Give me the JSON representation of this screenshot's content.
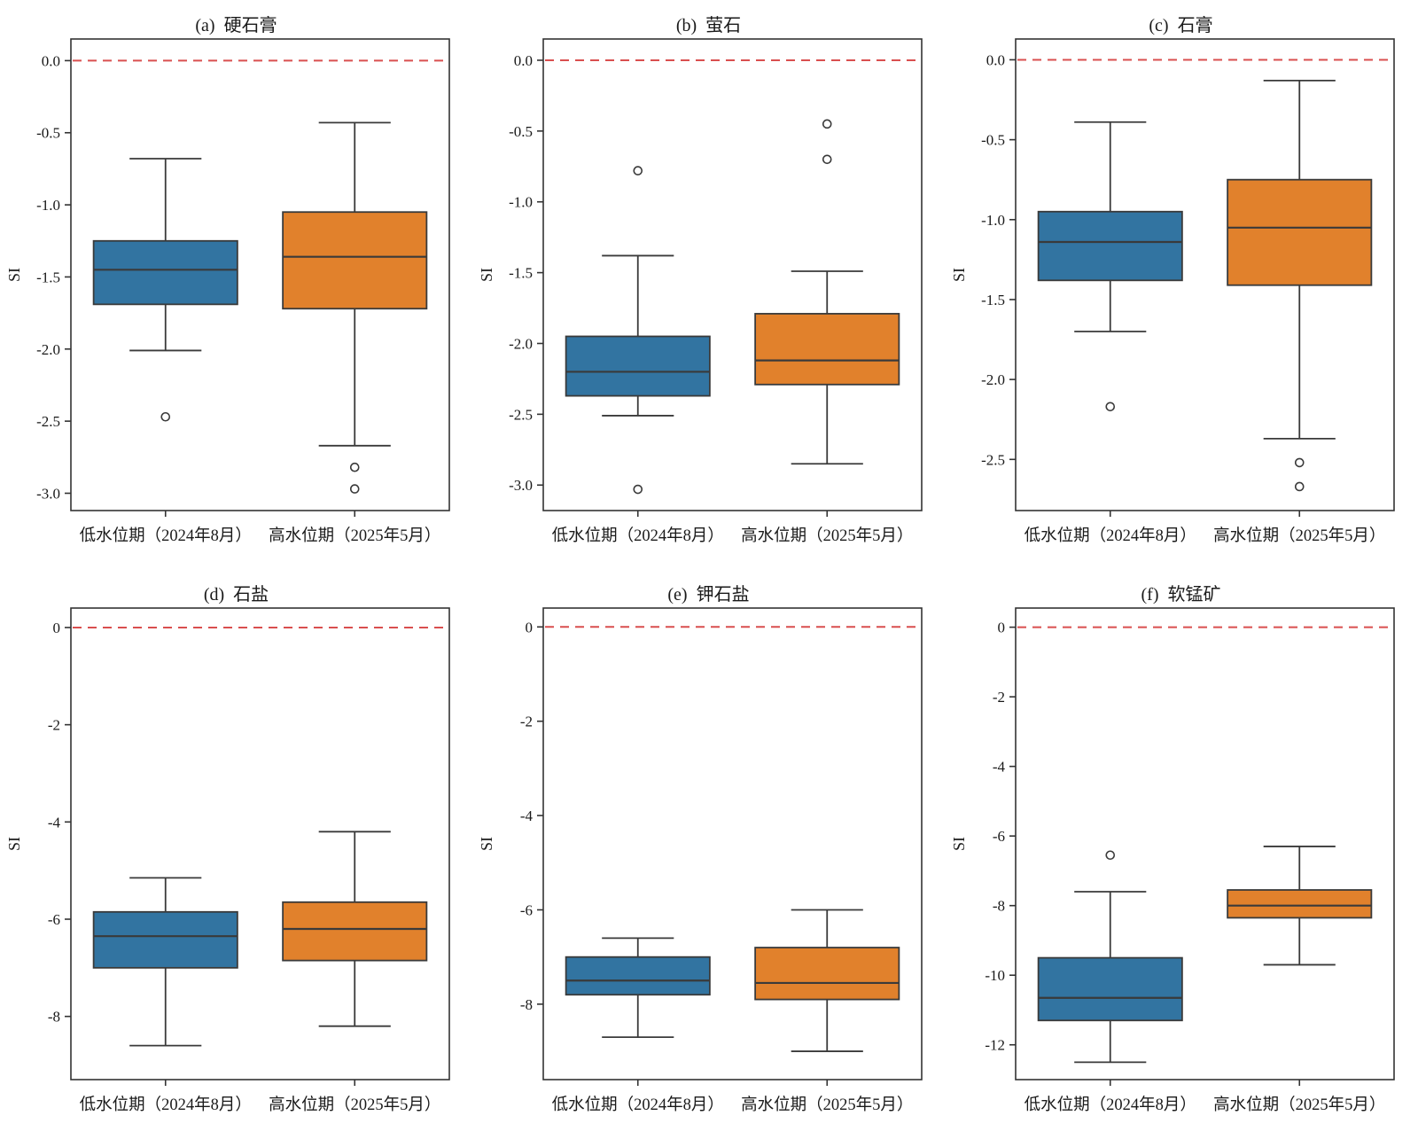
{
  "figure": {
    "ylabel": "SI",
    "refline": {
      "value": 0,
      "color": "#d94f4f",
      "style": "dashed"
    },
    "colors": {
      "low_period": "#3274a1",
      "high_period": "#e1812c",
      "box_edge": "#3a3a3a",
      "axis": "#333333",
      "text": "#1a1a1a"
    },
    "categories": [
      "低水位期（2024年8月）",
      "高水位期（2025年5月）"
    ]
  },
  "chart_data": [
    {
      "type": "boxplot",
      "title": "(a)  硬石膏",
      "ylabel": "SI",
      "ylim": [
        -3.12,
        0.15
      ],
      "refline": 0,
      "yticks": [
        {
          "v": 0,
          "t": "0.0"
        },
        {
          "v": -0.5,
          "t": "-0.5"
        },
        {
          "v": -1,
          "t": "-1.0"
        },
        {
          "v": -1.5,
          "t": "-1.5"
        },
        {
          "v": -2,
          "t": "-2.0"
        },
        {
          "v": -2.5,
          "t": "-2.5"
        },
        {
          "v": -3,
          "t": "-3.0"
        }
      ],
      "series": [
        {
          "label": "低水位期（2024年8月）",
          "color": "#3274a1",
          "whislo": -2.01,
          "q1": -1.69,
          "med": -1.45,
          "q3": -1.25,
          "whishi": -0.68,
          "fliers": [
            -2.47
          ]
        },
        {
          "label": "高水位期（2025年5月）",
          "color": "#e1812c",
          "whislo": -2.67,
          "q1": -1.72,
          "med": -1.36,
          "q3": -1.05,
          "whishi": -0.43,
          "fliers": [
            -2.82,
            -2.97
          ]
        }
      ]
    },
    {
      "type": "boxplot",
      "title": "(b)  萤石",
      "ylabel": "SI",
      "ylim": [
        -3.18,
        0.15
      ],
      "refline": 0,
      "yticks": [
        {
          "v": 0,
          "t": "0.0"
        },
        {
          "v": -0.5,
          "t": "-0.5"
        },
        {
          "v": -1,
          "t": "-1.0"
        },
        {
          "v": -1.5,
          "t": "-1.5"
        },
        {
          "v": -2,
          "t": "-2.0"
        },
        {
          "v": -2.5,
          "t": "-2.5"
        },
        {
          "v": -3,
          "t": "-3.0"
        }
      ],
      "series": [
        {
          "label": "低水位期（2024年8月）",
          "color": "#3274a1",
          "whislo": -2.51,
          "q1": -2.37,
          "med": -2.2,
          "q3": -1.95,
          "whishi": -1.38,
          "fliers": [
            -0.78,
            -3.03
          ]
        },
        {
          "label": "高水位期（2025年5月）",
          "color": "#e1812c",
          "whislo": -2.85,
          "q1": -2.29,
          "med": -2.12,
          "q3": -1.79,
          "whishi": -1.49,
          "fliers": [
            -0.45,
            -0.7
          ]
        }
      ]
    },
    {
      "type": "boxplot",
      "title": "(c)  石膏",
      "ylabel": "SI",
      "ylim": [
        -2.82,
        0.13
      ],
      "refline": 0,
      "yticks": [
        {
          "v": 0,
          "t": "0.0"
        },
        {
          "v": -0.5,
          "t": "-0.5"
        },
        {
          "v": -1,
          "t": "-1.0"
        },
        {
          "v": -1.5,
          "t": "-1.5"
        },
        {
          "v": -2,
          "t": "-2.0"
        },
        {
          "v": -2.5,
          "t": "-2.5"
        }
      ],
      "series": [
        {
          "label": "低水位期（2024年8月）",
          "color": "#3274a1",
          "whislo": -1.7,
          "q1": -1.38,
          "med": -1.14,
          "q3": -0.95,
          "whishi": -0.39,
          "fliers": [
            -2.17
          ]
        },
        {
          "label": "高水位期（2025年5月）",
          "color": "#e1812c",
          "whislo": -2.37,
          "q1": -1.41,
          "med": -1.05,
          "q3": -0.75,
          "whishi": -0.13,
          "fliers": [
            -2.52,
            -2.67
          ]
        }
      ]
    },
    {
      "type": "boxplot",
      "title": "(d)  石盐",
      "ylabel": "SI",
      "ylim": [
        -9.3,
        0.4
      ],
      "refline": 0,
      "yticks": [
        {
          "v": 0,
          "t": "0"
        },
        {
          "v": -2,
          "t": "-2"
        },
        {
          "v": -4,
          "t": "-4"
        },
        {
          "v": -6,
          "t": "-6"
        },
        {
          "v": -8,
          "t": "-8"
        }
      ],
      "series": [
        {
          "label": "低水位期（2024年8月）",
          "color": "#3274a1",
          "whislo": -8.6,
          "q1": -7.0,
          "med": -6.35,
          "q3": -5.85,
          "whishi": -5.15,
          "fliers": []
        },
        {
          "label": "高水位期（2025年5月）",
          "color": "#e1812c",
          "whislo": -8.2,
          "q1": -6.85,
          "med": -6.2,
          "q3": -5.65,
          "whishi": -4.2,
          "fliers": []
        }
      ]
    },
    {
      "type": "boxplot",
      "title": "(e)  钾石盐",
      "ylabel": "SI",
      "ylim": [
        -9.6,
        0.4
      ],
      "refline": 0,
      "yticks": [
        {
          "v": 0,
          "t": "0"
        },
        {
          "v": -2,
          "t": "-2"
        },
        {
          "v": -4,
          "t": "-4"
        },
        {
          "v": -6,
          "t": "-6"
        },
        {
          "v": -8,
          "t": "-8"
        }
      ],
      "series": [
        {
          "label": "低水位期（2024年8月）",
          "color": "#3274a1",
          "whislo": -8.7,
          "q1": -7.8,
          "med": -7.5,
          "q3": -7.0,
          "whishi": -6.6,
          "fliers": []
        },
        {
          "label": "高水位期（2025年5月）",
          "color": "#e1812c",
          "whislo": -9.0,
          "q1": -7.9,
          "med": -7.55,
          "q3": -6.8,
          "whishi": -6.0,
          "fliers": []
        }
      ]
    },
    {
      "type": "boxplot",
      "title": "(f)  软锰矿",
      "ylabel": "SI",
      "ylim": [
        -13.0,
        0.55
      ],
      "refline": 0,
      "yticks": [
        {
          "v": 0,
          "t": "0"
        },
        {
          "v": -2,
          "t": "-2"
        },
        {
          "v": -4,
          "t": "-4"
        },
        {
          "v": -6,
          "t": "-6"
        },
        {
          "v": -8,
          "t": "-8"
        },
        {
          "v": -10,
          "t": "-10"
        },
        {
          "v": -12,
          "t": "-12"
        }
      ],
      "series": [
        {
          "label": "低水位期（2024年8月）",
          "color": "#3274a1",
          "whislo": -12.5,
          "q1": -11.3,
          "med": -10.65,
          "q3": -9.5,
          "whishi": -7.6,
          "fliers": [
            -6.55
          ]
        },
        {
          "label": "高水位期（2025年5月）",
          "color": "#e1812c",
          "whislo": -9.7,
          "q1": -8.35,
          "med": -8.0,
          "q3": -7.55,
          "whishi": -6.3,
          "fliers": []
        }
      ]
    }
  ]
}
